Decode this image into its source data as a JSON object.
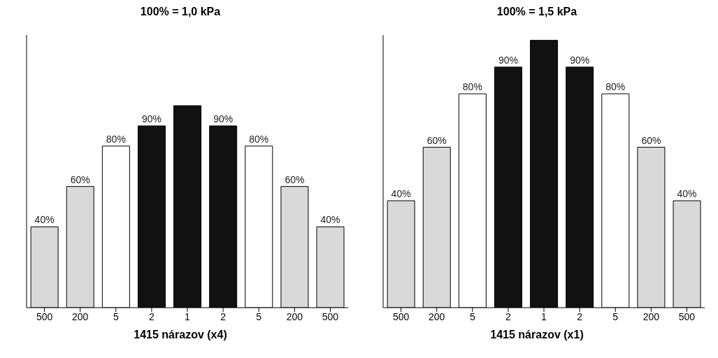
{
  "chart_data": [
    {
      "type": "bar",
      "title": "100% = 1,0 kPa",
      "xlabel": "1415 nárazov (x4)",
      "categories": [
        "500",
        "200",
        "5",
        "2",
        "1",
        "2",
        "5",
        "200",
        "500"
      ],
      "values": [
        40,
        60,
        80,
        90,
        100,
        90,
        80,
        60,
        40
      ],
      "value_labels": [
        "40%",
        "60%",
        "80%",
        "90%",
        null,
        "90%",
        "80%",
        "60%",
        "40%"
      ],
      "colors": [
        "#d9d9d9",
        "#d9d9d9",
        "#ffffff",
        "#111111",
        "#111111",
        "#111111",
        "#ffffff",
        "#d9d9d9",
        "#d9d9d9"
      ],
      "ylim": [
        0,
        135
      ],
      "tick_labels": "x",
      "grid": false,
      "legend": false
    },
    {
      "type": "bar",
      "title": "100% = 1,5 kPa",
      "xlabel": "1415 nárazov (x1)",
      "categories": [
        "500",
        "200",
        "5",
        "2",
        "1",
        "2",
        "5",
        "200",
        "500"
      ],
      "values": [
        40,
        60,
        80,
        90,
        100,
        90,
        80,
        60,
        40
      ],
      "value_labels": [
        "40%",
        "60%",
        "80%",
        "90%",
        null,
        "90%",
        "80%",
        "60%",
        "40%"
      ],
      "colors": [
        "#d9d9d9",
        "#d9d9d9",
        "#ffffff",
        "#111111",
        "#111111",
        "#111111",
        "#ffffff",
        "#d9d9d9",
        "#d9d9d9"
      ],
      "ylim": [
        0,
        102
      ],
      "tick_labels": "x",
      "grid": false,
      "legend": false
    }
  ]
}
